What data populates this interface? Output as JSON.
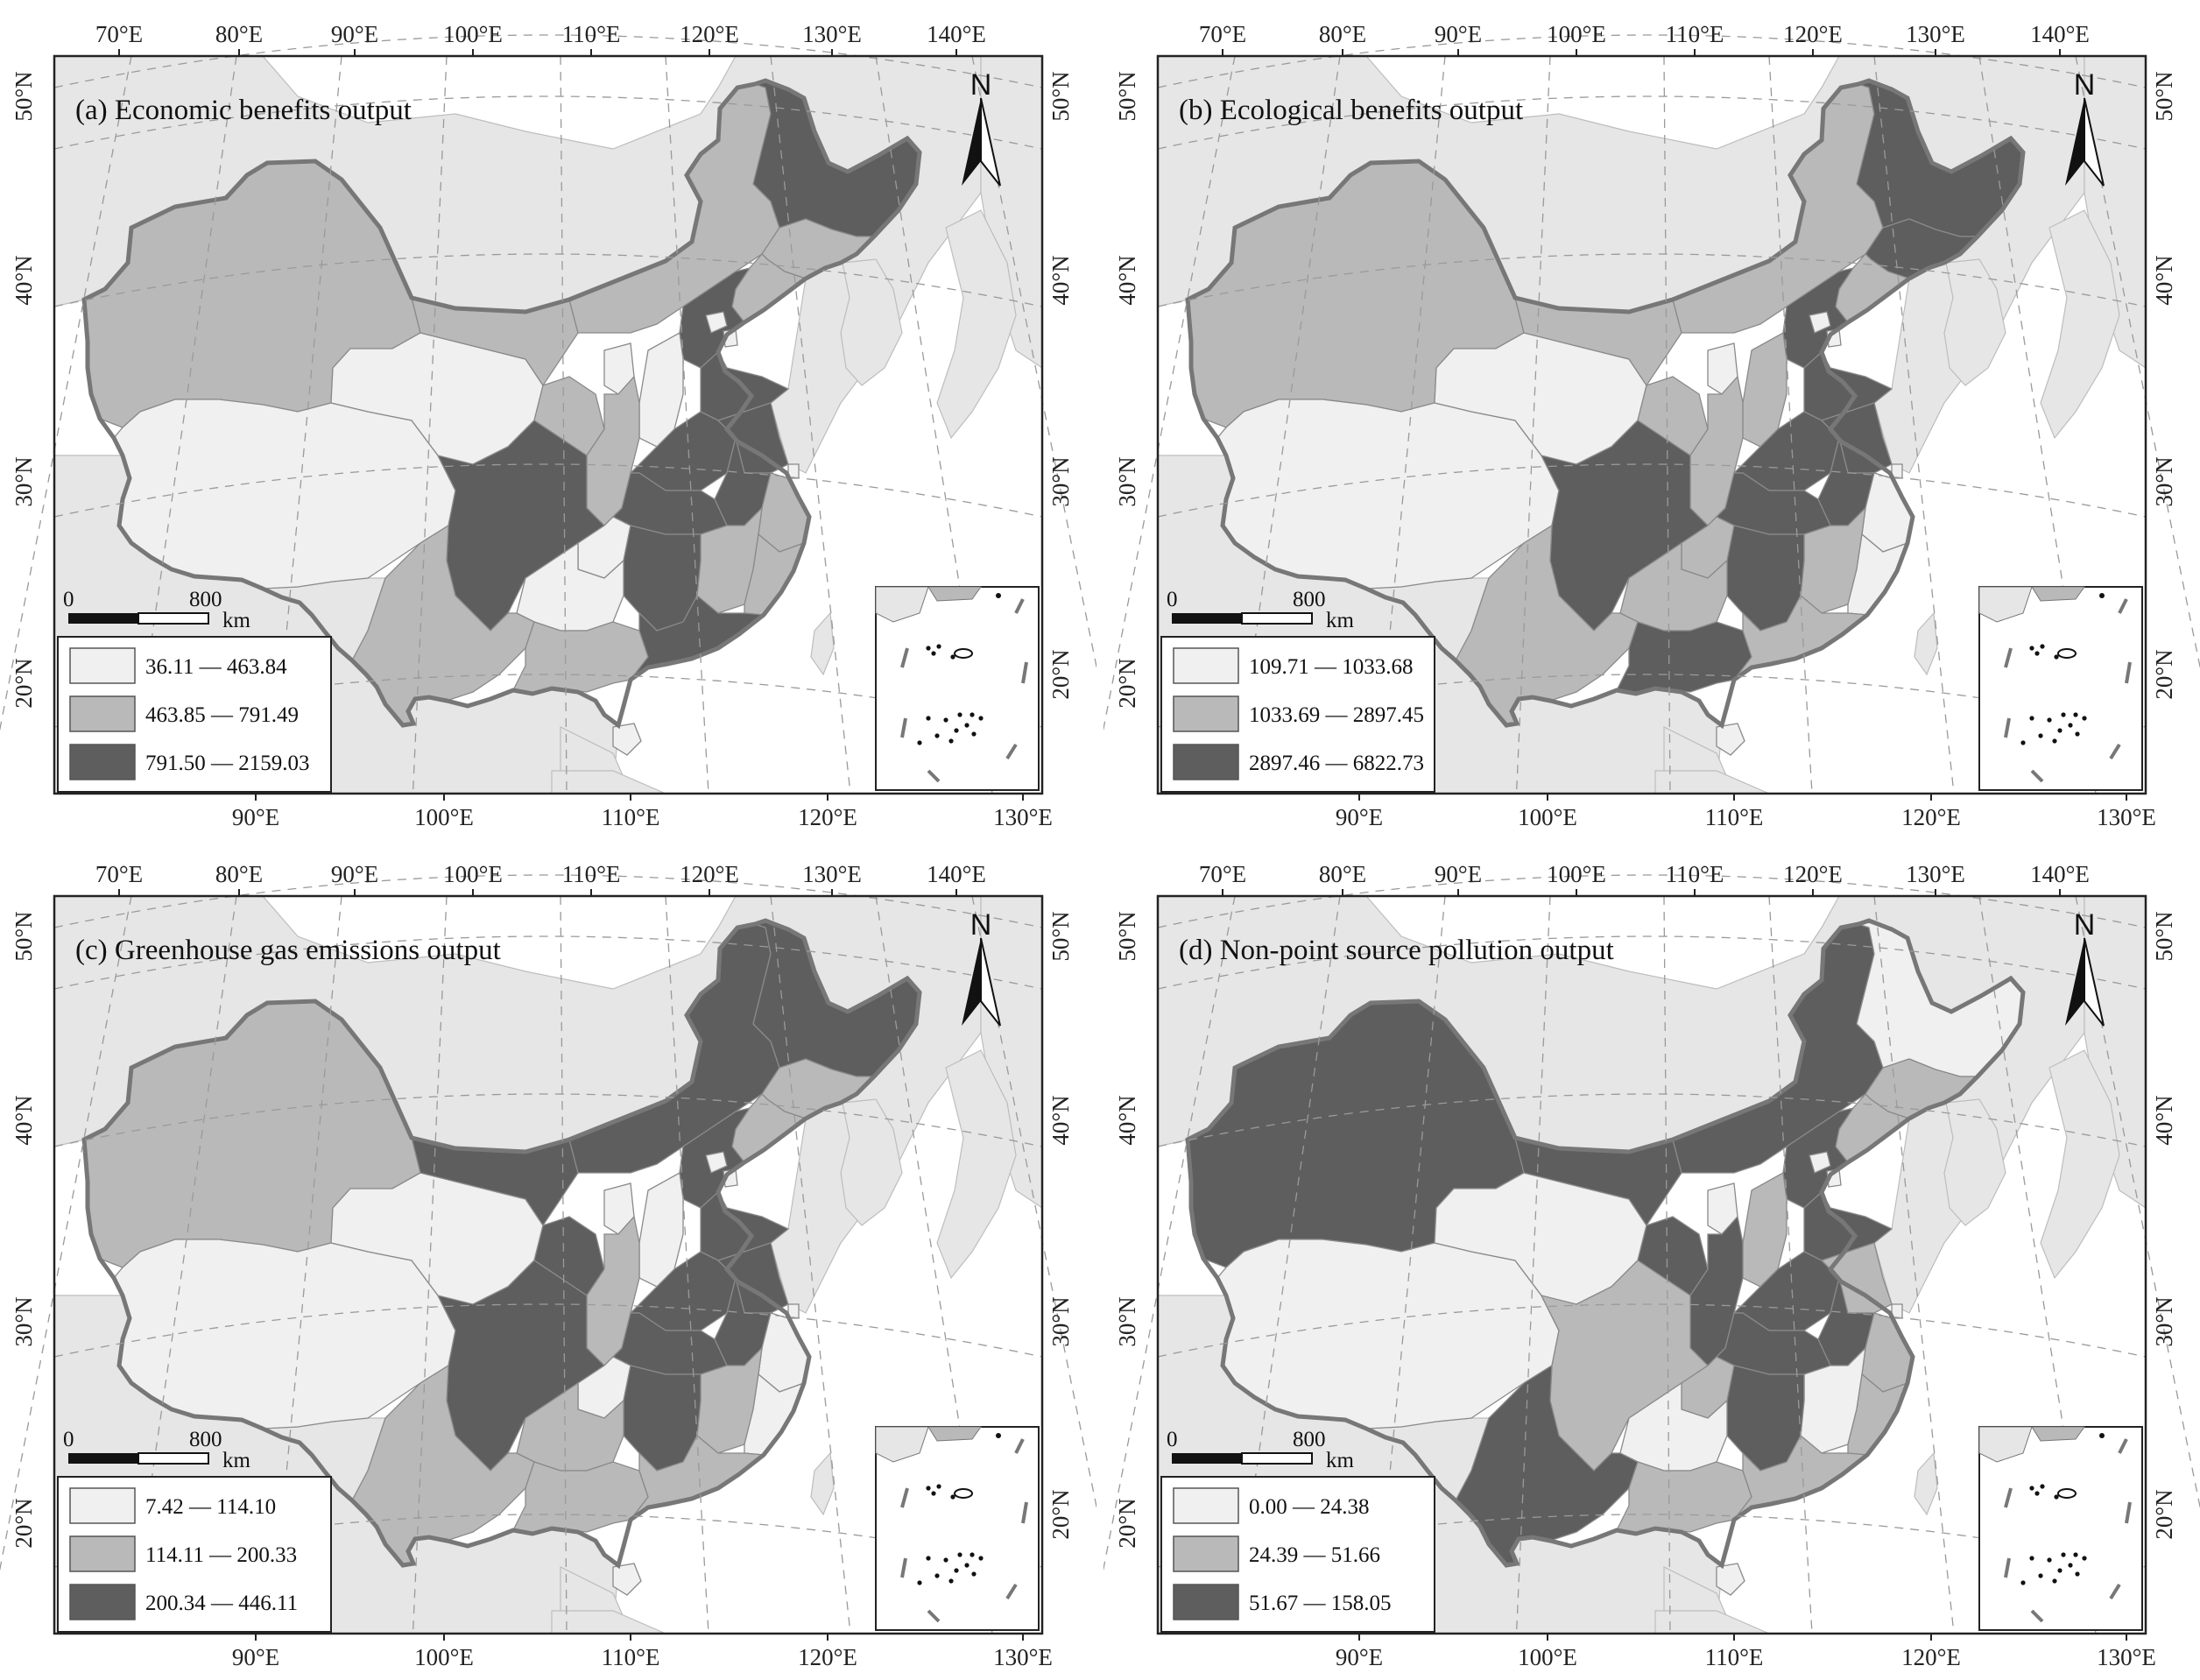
{
  "map": {
    "lon_top_labels": [
      "70°E",
      "80°E",
      "90°E",
      "100°E",
      "110°E",
      "120°E",
      "130°E",
      "140°E"
    ],
    "lon_bottom_labels": [
      "90°E",
      "100°E",
      "110°E",
      "120°E",
      "130°E"
    ],
    "lat_labels": [
      "50°N",
      "40°N",
      "30°N",
      "20°N"
    ],
    "north_label": "N",
    "scale": {
      "zero": "0",
      "distance": "800",
      "unit": "km"
    },
    "fill_colors": {
      "low": "#f0f0f0",
      "mid": "#b9b9b9",
      "high": "#5e5e5e",
      "neighbor": "#e6e6e6",
      "sea": "#ffffff",
      "border": "#777777"
    }
  },
  "panels": [
    {
      "title": "(a) Economic benefits output",
      "legend": [
        {
          "range": "36.11 — 463.84",
          "class": "low"
        },
        {
          "range": "463.85 — 791.49",
          "class": "mid"
        },
        {
          "range": "791.50 — 2159.03",
          "class": "high"
        }
      ]
    },
    {
      "title": "(b) Ecological benefits output",
      "legend": [
        {
          "range": "109.71 — 1033.68",
          "class": "low"
        },
        {
          "range": "1033.69 — 2897.45",
          "class": "mid"
        },
        {
          "range": "2897.46 — 6822.73",
          "class": "high"
        }
      ]
    },
    {
      "title": "(c) Greenhouse gas emissions output",
      "legend": [
        {
          "range": "7.42 — 114.10",
          "class": "low"
        },
        {
          "range": "114.11 — 200.33",
          "class": "mid"
        },
        {
          "range": "200.34 — 446.11",
          "class": "high"
        }
      ]
    },
    {
      "title": "(d) Non-point source pollution output",
      "legend": [
        {
          "range": "0.00 — 24.38",
          "class": "low"
        },
        {
          "range": "24.39 — 51.66",
          "class": "mid"
        },
        {
          "range": "51.67 — 158.05",
          "class": "high"
        }
      ]
    }
  ]
}
